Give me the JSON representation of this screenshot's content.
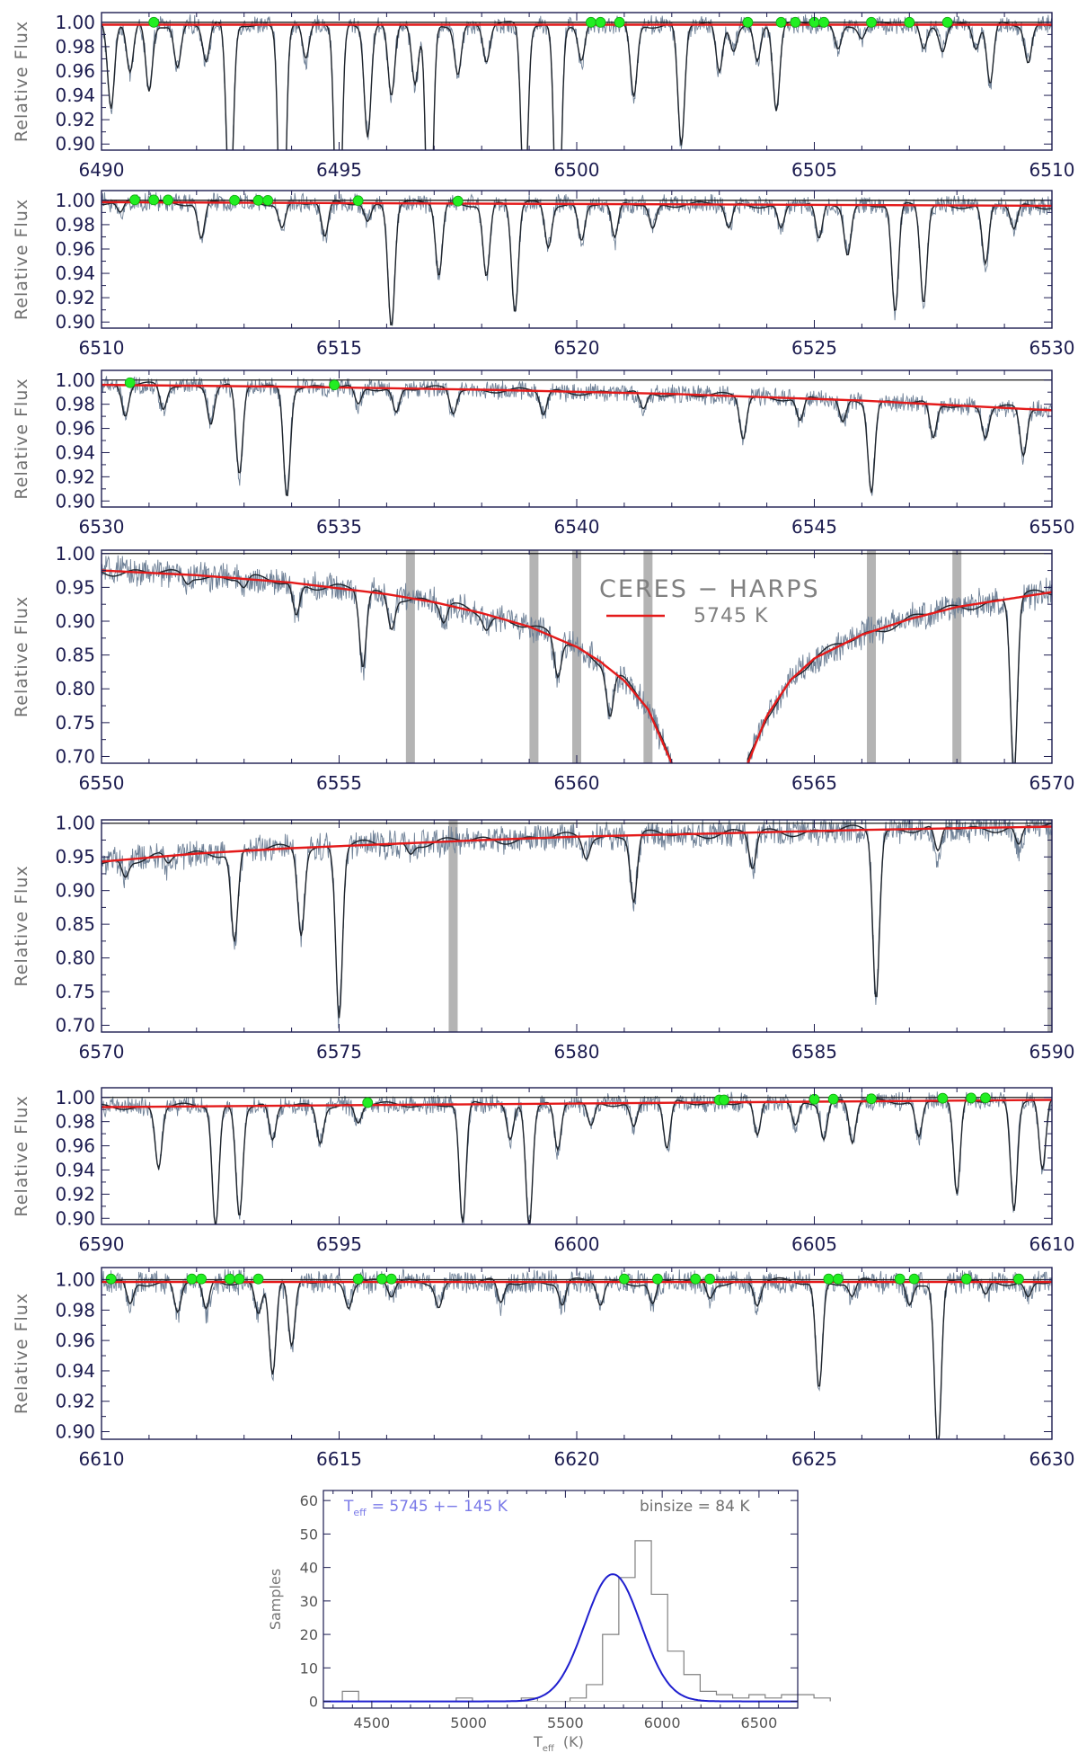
{
  "figure": {
    "legend_title": "CERES − HARPS",
    "legend_label": "5745 K"
  },
  "colors": {
    "spectrum": "#6f8197",
    "smoothed": "#1e242c",
    "fit": "#e41a1a",
    "marker": "#22ee22",
    "mask": "#b4b4b4",
    "axis": "#1c1c50",
    "gauss": "#1f1fcf"
  },
  "chart_data": [
    {
      "type": "line",
      "xlabel": "",
      "ylabel": "Relative Flux",
      "xlim": [
        6490,
        6510
      ],
      "ylim": [
        0.895,
        1.008
      ],
      "xticks": [
        6490,
        6495,
        6500,
        6505,
        6510
      ],
      "yticks": [
        0.9,
        0.92,
        0.94,
        0.96,
        0.98,
        1.0
      ],
      "fit_line": {
        "x": [
          6490,
          6510
        ],
        "y": [
          0.998,
          0.998
        ]
      },
      "fit_markers_x": [
        6491.1,
        6500.3,
        6500.5,
        6500.9,
        6503.6,
        6504.3,
        6504.6,
        6505.0,
        6505.2,
        6506.2,
        6507.0,
        6507.8
      ],
      "absorption_lines": [
        [
          6490.2,
          0.07
        ],
        [
          6490.6,
          0.04
        ],
        [
          6491.0,
          0.055
        ],
        [
          6491.6,
          0.035
        ],
        [
          6492.2,
          0.03
        ],
        [
          6492.7,
          0.16
        ],
        [
          6493.8,
          0.23
        ],
        [
          6494.3,
          0.03
        ],
        [
          6494.98,
          0.22
        ],
        [
          6495.6,
          0.09
        ],
        [
          6496.1,
          0.06
        ],
        [
          6496.6,
          0.05
        ],
        [
          6496.9,
          0.21
        ],
        [
          6497.5,
          0.04
        ],
        [
          6498.1,
          0.03
        ],
        [
          6498.9,
          0.15
        ],
        [
          6499.6,
          0.2
        ],
        [
          6500.1,
          0.03
        ],
        [
          6501.2,
          0.06
        ],
        [
          6502.2,
          0.1
        ],
        [
          6503.0,
          0.04
        ],
        [
          6503.3,
          0.02
        ],
        [
          6503.8,
          0.03
        ],
        [
          6504.2,
          0.07
        ],
        [
          6505.5,
          0.02
        ],
        [
          6506.0,
          0.01
        ],
        [
          6507.3,
          0.02
        ],
        [
          6507.7,
          0.02
        ],
        [
          6508.4,
          0.02
        ],
        [
          6508.7,
          0.05
        ],
        [
          6509.5,
          0.03
        ]
      ],
      "mask_x": []
    },
    {
      "type": "line",
      "xlabel": "",
      "ylabel": "Relative Flux",
      "xlim": [
        6510,
        6530
      ],
      "ylim": [
        0.895,
        1.008
      ],
      "xticks": [
        6510,
        6515,
        6520,
        6525,
        6530
      ],
      "yticks": [
        0.9,
        0.92,
        0.94,
        0.96,
        0.98,
        1.0
      ],
      "fit_line": {
        "x": [
          6510,
          6530
        ],
        "y": [
          0.9985,
          0.9955
        ]
      },
      "fit_markers_x": [
        6510.7,
        6511.1,
        6511.4,
        6512.8,
        6513.3,
        6513.5,
        6515.4,
        6517.5
      ],
      "absorption_lines": [
        [
          6510.4,
          0.01
        ],
        [
          6512.1,
          0.03
        ],
        [
          6513.8,
          0.02
        ],
        [
          6514.7,
          0.03
        ],
        [
          6515.6,
          0.015
        ],
        [
          6516.1,
          0.1
        ],
        [
          6517.1,
          0.06
        ],
        [
          6518.1,
          0.06
        ],
        [
          6518.7,
          0.09
        ],
        [
          6519.4,
          0.035
        ],
        [
          6520.1,
          0.03
        ],
        [
          6520.8,
          0.03
        ],
        [
          6521.6,
          0.02
        ],
        [
          6523.2,
          0.02
        ],
        [
          6524.3,
          0.02
        ],
        [
          6525.1,
          0.03
        ],
        [
          6525.7,
          0.04
        ],
        [
          6526.7,
          0.09
        ],
        [
          6527.3,
          0.08
        ],
        [
          6528.6,
          0.05
        ],
        [
          6529.2,
          0.02
        ]
      ],
      "mask_x": []
    },
    {
      "type": "line",
      "xlabel": "",
      "ylabel": "Relative Flux",
      "xlim": [
        6530,
        6550
      ],
      "ylim": [
        0.895,
        1.008
      ],
      "xticks": [
        6530,
        6535,
        6540,
        6545,
        6550
      ],
      "yticks": [
        0.9,
        0.92,
        0.94,
        0.96,
        0.98,
        1.0
      ],
      "fit_line": {
        "x": [
          6530,
          6534,
          6538,
          6542,
          6546,
          6550
        ],
        "y": [
          0.996,
          0.9945,
          0.992,
          0.9885,
          0.983,
          0.975
        ]
      },
      "fit_markers_x": [
        6530.6,
        6534.9
      ],
      "absorption_lines": [
        [
          6530.5,
          0.025
        ],
        [
          6531.3,
          0.02
        ],
        [
          6532.3,
          0.03
        ],
        [
          6532.9,
          0.075
        ],
        [
          6533.9,
          0.09
        ],
        [
          6535.4,
          0.015
        ],
        [
          6536.2,
          0.02
        ],
        [
          6537.4,
          0.02
        ],
        [
          6539.3,
          0.02
        ],
        [
          6541.4,
          0.015
        ],
        [
          6543.5,
          0.035
        ],
        [
          6544.7,
          0.02
        ],
        [
          6545.6,
          0.02
        ],
        [
          6546.2,
          0.075
        ],
        [
          6547.5,
          0.03
        ],
        [
          6548.6,
          0.025
        ],
        [
          6549.4,
          0.04
        ]
      ],
      "mask_x": []
    },
    {
      "type": "line",
      "xlabel": "",
      "ylabel": "Relative Flux",
      "xlim": [
        6550,
        6570
      ],
      "ylim": [
        0.69,
        1.005
      ],
      "xticks": [
        6550,
        6555,
        6560,
        6565,
        6570
      ],
      "yticks": [
        0.7,
        0.75,
        0.8,
        0.85,
        0.9,
        0.95,
        1.0
      ],
      "fit_line": {
        "x": [
          6550,
          6552,
          6554,
          6556,
          6557,
          6558,
          6559,
          6560,
          6560.5,
          6561,
          6561.5,
          6562,
          6563.6,
          6564,
          6564.5,
          6565,
          6566,
          6567,
          6568,
          6570
        ],
        "y": [
          0.975,
          0.968,
          0.957,
          0.94,
          0.928,
          0.912,
          0.892,
          0.862,
          0.84,
          0.812,
          0.77,
          0.69,
          0.69,
          0.76,
          0.813,
          0.845,
          0.88,
          0.903,
          0.921,
          0.943
        ]
      },
      "fit_markers_x": [],
      "absorption_lines": [
        [
          6551.8,
          0.012
        ],
        [
          6553.0,
          0.015
        ],
        [
          6554.1,
          0.05
        ],
        [
          6555.5,
          0.12
        ],
        [
          6556.1,
          0.05
        ],
        [
          6557.2,
          0.03
        ],
        [
          6558.1,
          0.02
        ],
        [
          6559.6,
          0.065
        ],
        [
          6560.7,
          0.08
        ],
        [
          6569.2,
          0.28
        ]
      ],
      "mask_x": [
        6556.5,
        6559.1,
        6560.0,
        6561.5,
        6566.2,
        6568.0
      ],
      "legend": true
    },
    {
      "type": "line",
      "xlabel": "",
      "ylabel": "Relative Flux",
      "xlim": [
        6570,
        6590
      ],
      "ylim": [
        0.69,
        1.005
      ],
      "xticks": [
        6570,
        6575,
        6580,
        6585,
        6590
      ],
      "yticks": [
        0.7,
        0.75,
        0.8,
        0.85,
        0.9,
        0.95,
        1.0
      ],
      "fit_line": {
        "x": [
          6570,
          6572,
          6574,
          6576,
          6578,
          6580,
          6583,
          6586,
          6590
        ],
        "y": [
          0.943,
          0.955,
          0.963,
          0.969,
          0.975,
          0.98,
          0.985,
          0.99,
          0.995
        ]
      },
      "fit_markers_x": [],
      "absorption_lines": [
        [
          6570.5,
          0.025
        ],
        [
          6571.4,
          0.015
        ],
        [
          6572.8,
          0.14
        ],
        [
          6574.2,
          0.13
        ],
        [
          6575.0,
          0.26
        ],
        [
          6576.5,
          0.015
        ],
        [
          6580.2,
          0.03
        ],
        [
          6581.2,
          0.1
        ],
        [
          6583.7,
          0.055
        ],
        [
          6586.3,
          0.25
        ],
        [
          6587.6,
          0.04
        ],
        [
          6589.3,
          0.03
        ]
      ],
      "mask_x": [
        6577.4,
        6590.0
      ]
    },
    {
      "type": "line",
      "xlabel": "",
      "ylabel": "Relative Flux",
      "xlim": [
        6590,
        6610
      ],
      "ylim": [
        0.895,
        1.008
      ],
      "xticks": [
        6590,
        6595,
        6600,
        6605,
        6610
      ],
      "yticks": [
        0.9,
        0.92,
        0.94,
        0.96,
        0.98,
        1.0
      ],
      "fit_line": {
        "x": [
          6590,
          6610
        ],
        "y": [
          0.992,
          0.998
        ]
      },
      "fit_markers_x": [
        6595.6,
        6603.0,
        6603.1,
        6605.0,
        6605.4,
        6606.2,
        6607.7,
        6608.3,
        6608.6
      ],
      "absorption_lines": [
        [
          6591.2,
          0.05
        ],
        [
          6592.4,
          0.1
        ],
        [
          6592.9,
          0.09
        ],
        [
          6593.6,
          0.03
        ],
        [
          6594.6,
          0.03
        ],
        [
          6595.4,
          0.015
        ],
        [
          6597.6,
          0.1
        ],
        [
          6598.6,
          0.03
        ],
        [
          6599.0,
          0.1
        ],
        [
          6599.6,
          0.04
        ],
        [
          6600.3,
          0.02
        ],
        [
          6601.2,
          0.02
        ],
        [
          6601.9,
          0.04
        ],
        [
          6603.8,
          0.03
        ],
        [
          6604.6,
          0.02
        ],
        [
          6605.2,
          0.03
        ],
        [
          6605.8,
          0.035
        ],
        [
          6607.2,
          0.03
        ],
        [
          6608.0,
          0.08
        ],
        [
          6609.2,
          0.09
        ],
        [
          6609.8,
          0.06
        ]
      ],
      "mask_x": []
    },
    {
      "type": "line",
      "xlabel": "",
      "ylabel": "Relative Flux",
      "xlim": [
        6610,
        6630
      ],
      "ylim": [
        0.895,
        1.008
      ],
      "xticks": [
        6610,
        6615,
        6620,
        6625,
        6630
      ],
      "yticks": [
        0.9,
        0.92,
        0.94,
        0.96,
        0.98,
        1.0
      ],
      "fit_line": {
        "x": [
          6610,
          6630
        ],
        "y": [
          0.9985,
          0.9985
        ]
      },
      "fit_markers_x": [
        6610.2,
        6611.9,
        6612.1,
        6612.7,
        6612.9,
        6613.3,
        6615.4,
        6615.9,
        6616.1,
        6621.0,
        6621.7,
        6622.5,
        6622.8,
        6625.3,
        6625.5,
        6626.8,
        6627.1,
        6628.2,
        6629.3
      ],
      "absorption_lines": [
        [
          6610.6,
          0.015
        ],
        [
          6611.6,
          0.02
        ],
        [
          6612.2,
          0.02
        ],
        [
          6613.3,
          0.02
        ],
        [
          6613.6,
          0.06
        ],
        [
          6614.0,
          0.045
        ],
        [
          6615.2,
          0.015
        ],
        [
          6616.1,
          0.01
        ],
        [
          6617.1,
          0.015
        ],
        [
          6618.4,
          0.015
        ],
        [
          6619.7,
          0.015
        ],
        [
          6620.5,
          0.015
        ],
        [
          6621.6,
          0.015
        ],
        [
          6622.8,
          0.01
        ],
        [
          6623.8,
          0.015
        ],
        [
          6625.1,
          0.07
        ],
        [
          6625.8,
          0.01
        ],
        [
          6627.0,
          0.015
        ],
        [
          6627.6,
          0.11
        ],
        [
          6628.6,
          0.01
        ],
        [
          6629.5,
          0.01
        ]
      ],
      "mask_x": []
    },
    {
      "type": "bar",
      "xlabel": "T_eff (K)",
      "xlabel_main": "T",
      "xlabel_sub": "eff",
      "xlabel_unit": "(K)",
      "ylabel": "Samples",
      "xlim": [
        4250,
        6700
      ],
      "ylim": [
        -2,
        63
      ],
      "xticks": [
        4500,
        5000,
        5500,
        6000,
        6500
      ],
      "yticks": [
        0,
        10,
        20,
        30,
        40,
        50,
        60
      ],
      "annotation_teff_main": "T",
      "annotation_teff_sub": "eff",
      "annotation_teff_value": "= 5745 +− 145 K",
      "annotation_binsize": "binsize = 84 K",
      "bin_edges_start": 4348,
      "bin_width": 84,
      "counts": [
        3,
        0,
        0,
        0,
        0,
        0,
        0,
        1,
        0,
        0,
        0,
        1,
        0,
        0,
        1,
        5,
        20,
        37,
        48,
        32,
        15,
        8,
        3,
        2,
        1,
        2,
        1,
        2,
        2,
        1
      ],
      "gaussian": {
        "mean": 5745,
        "sigma": 145,
        "amplitude": 38
      }
    }
  ]
}
